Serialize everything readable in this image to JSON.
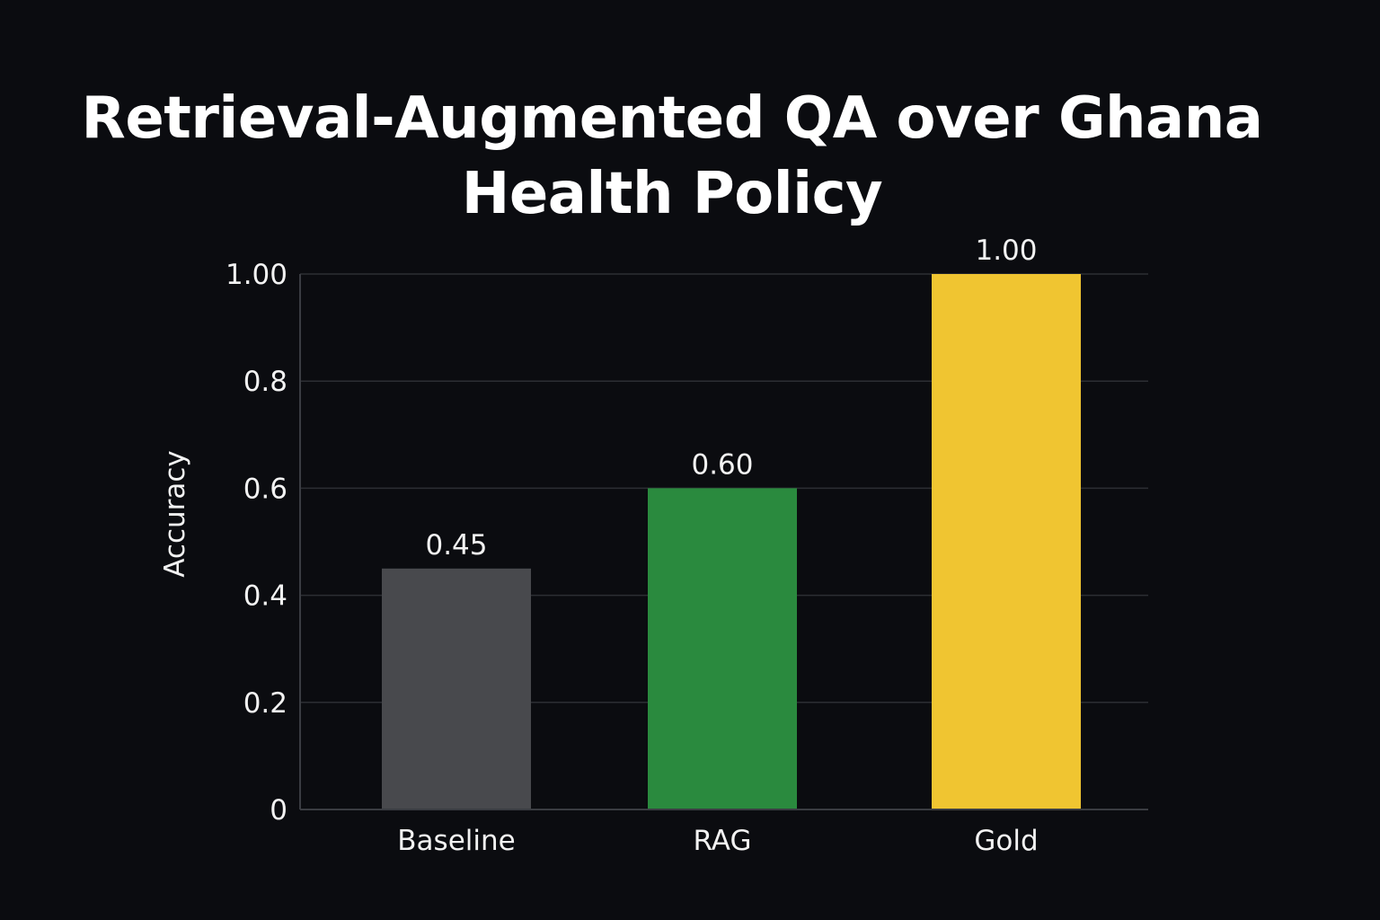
{
  "chart_data": {
    "type": "bar",
    "title": "Retrieval-Augmented QA over Ghana Health Policy",
    "xlabel": "",
    "ylabel": "Accuracy",
    "categories": [
      "Baseline",
      "RAG",
      "Gold"
    ],
    "values": [
      0.45,
      0.6,
      1.0
    ],
    "data_labels": [
      "0.45",
      "0.60",
      "1.00"
    ],
    "bar_colors": [
      "#48494d",
      "#2a8a3e",
      "#f0c531"
    ],
    "ylim": [
      0,
      1.0
    ],
    "yticks": [
      0,
      0.2,
      0.4,
      0.6,
      0.8,
      1.0
    ],
    "ytick_labels": [
      "0",
      "0.2",
      "0.4",
      "0.6",
      "0.8",
      "1.00"
    ],
    "grid": true,
    "legend": "none",
    "background": "#0b0c10"
  }
}
